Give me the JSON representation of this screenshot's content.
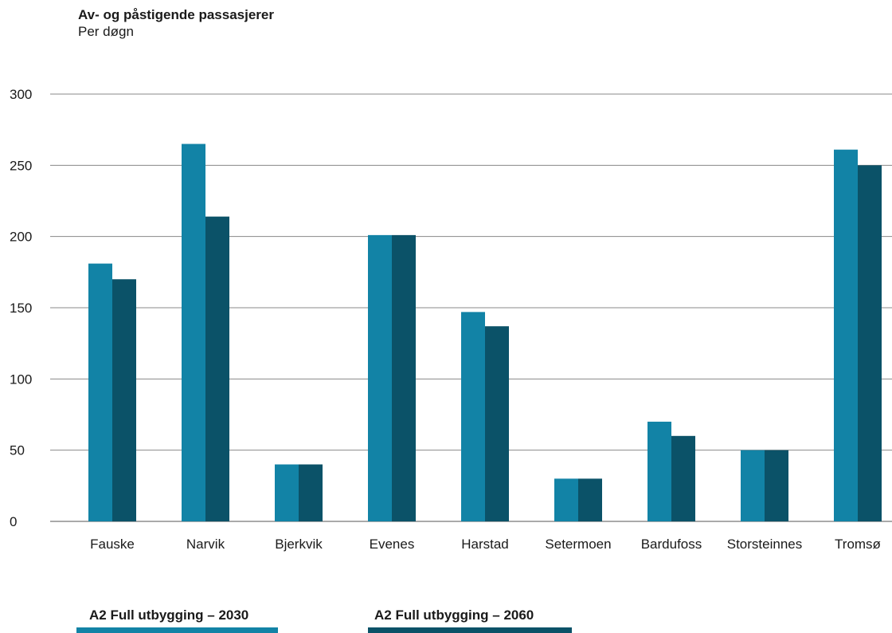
{
  "chart_data": {
    "type": "bar",
    "title": "Av- og påstigende passasjerer",
    "subtitle": "Per døgn",
    "xlabel": "",
    "ylabel": "",
    "ylim": [
      0,
      300
    ],
    "yticks": [
      0,
      50,
      100,
      150,
      200,
      250,
      300
    ],
    "grid": true,
    "legend_position": "bottom",
    "categories": [
      "Fauske",
      "Narvik",
      "Bjerkvik",
      "Evenes",
      "Harstad",
      "Setermoen",
      "Bardufoss",
      "Storsteinnes",
      "Tromsø"
    ],
    "series": [
      {
        "name": "A2 Full utbygging – 2030",
        "color": "#1283a6",
        "values": [
          181,
          265,
          40,
          201,
          147,
          30,
          70,
          50,
          261
        ]
      },
      {
        "name": "A2 Full utbygging – 2060",
        "color": "#0b5268",
        "values": [
          170,
          214,
          40,
          201,
          137,
          30,
          60,
          50,
          250
        ]
      }
    ]
  }
}
